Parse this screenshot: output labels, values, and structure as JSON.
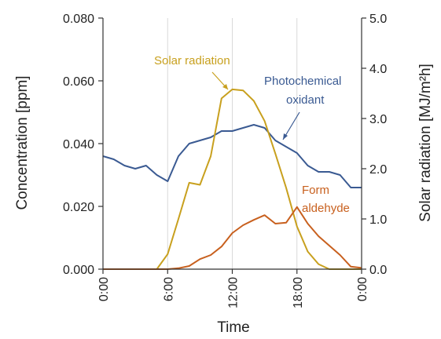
{
  "chart_data": {
    "type": "line",
    "xlabel": "Time",
    "x_ticks": [
      "0:00",
      "6:00",
      "12:00",
      "18:00",
      "0:00"
    ],
    "x_range_hours": [
      0,
      24
    ],
    "x_hours": [
      0,
      1,
      2,
      3,
      4,
      5,
      6,
      7,
      8,
      9,
      10,
      11,
      12,
      13,
      14,
      15,
      16,
      17,
      18,
      19,
      20,
      21,
      22,
      23,
      24
    ],
    "left_axis": {
      "label": "Concentration [ppm]",
      "ylim": [
        0,
        0.08
      ],
      "ticks": [
        "0.000",
        "0.020",
        "0.040",
        "0.060",
        "0.080"
      ]
    },
    "right_axis": {
      "label": "Solar radiation [MJ/m²h]",
      "ylim": [
        0,
        5.0
      ],
      "ticks": [
        "0.0",
        "1.0",
        "2.0",
        "3.0",
        "4.0",
        "5.0"
      ]
    },
    "grid": "vertical",
    "series": [
      {
        "name": "Photochemical oxidant",
        "axis": "left",
        "color": "#3a5a92",
        "values": [
          0.036,
          0.035,
          0.033,
          0.032,
          0.033,
          0.03,
          0.028,
          0.036,
          0.04,
          0.041,
          0.042,
          0.044,
          0.044,
          0.045,
          0.046,
          0.045,
          0.041,
          0.039,
          0.037,
          0.033,
          0.031,
          0.031,
          0.03,
          0.026,
          0.026
        ]
      },
      {
        "name": "Solar radiation",
        "axis": "right",
        "color": "#c8a01e",
        "values": [
          0,
          0,
          0,
          0,
          0,
          0,
          0.3,
          1.0,
          1.72,
          1.68,
          2.25,
          3.4,
          3.58,
          3.56,
          3.35,
          2.95,
          2.3,
          1.62,
          0.85,
          0.35,
          0.1,
          0,
          0,
          0,
          0
        ]
      },
      {
        "name": "Form aldehyde",
        "axis": "left",
        "color": "#c8601e",
        "values": [
          0,
          0,
          0,
          0,
          0,
          0,
          0,
          0.0003,
          0.001,
          0.0032,
          0.0045,
          0.0072,
          0.0115,
          0.014,
          0.0157,
          0.0172,
          0.0145,
          0.0148,
          0.0198,
          0.0145,
          0.0105,
          0.0075,
          0.0045,
          0.0008,
          0.0004
        ]
      }
    ],
    "annotations": {
      "solar": "Solar radiation",
      "oxidant_line1": "Photochemical",
      "oxidant_line2": "oxidant",
      "aldehyde_line1": "Form",
      "aldehyde_line2": "aldehyde"
    }
  }
}
